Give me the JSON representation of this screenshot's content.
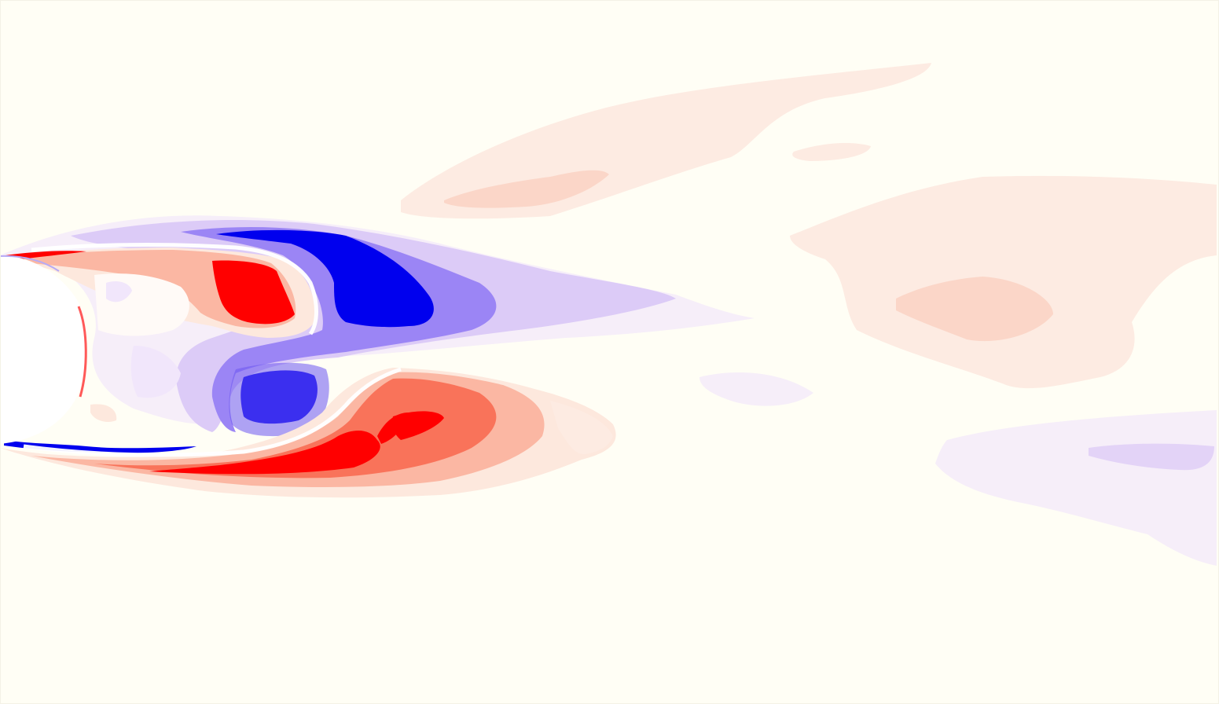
{
  "figure": {
    "type": "vorticity-contour-field",
    "background_color": "#fffef5",
    "colors": {
      "positive_strong": "#ff0000",
      "positive_mid": "#f9735a",
      "positive_weak": "#fde8dd",
      "positive_faint": "#fceee6",
      "negative_strong": "#0000ee",
      "negative_mid": "#7f6cf3",
      "negative_weak": "#dccbf7",
      "negative_faint": "#f6eef9",
      "body": "#ffffff"
    },
    "elements": [
      "cylinder-body",
      "shear-layer-upper",
      "shear-layer-lower",
      "wake-vortices",
      "far-wake-patches"
    ]
  }
}
